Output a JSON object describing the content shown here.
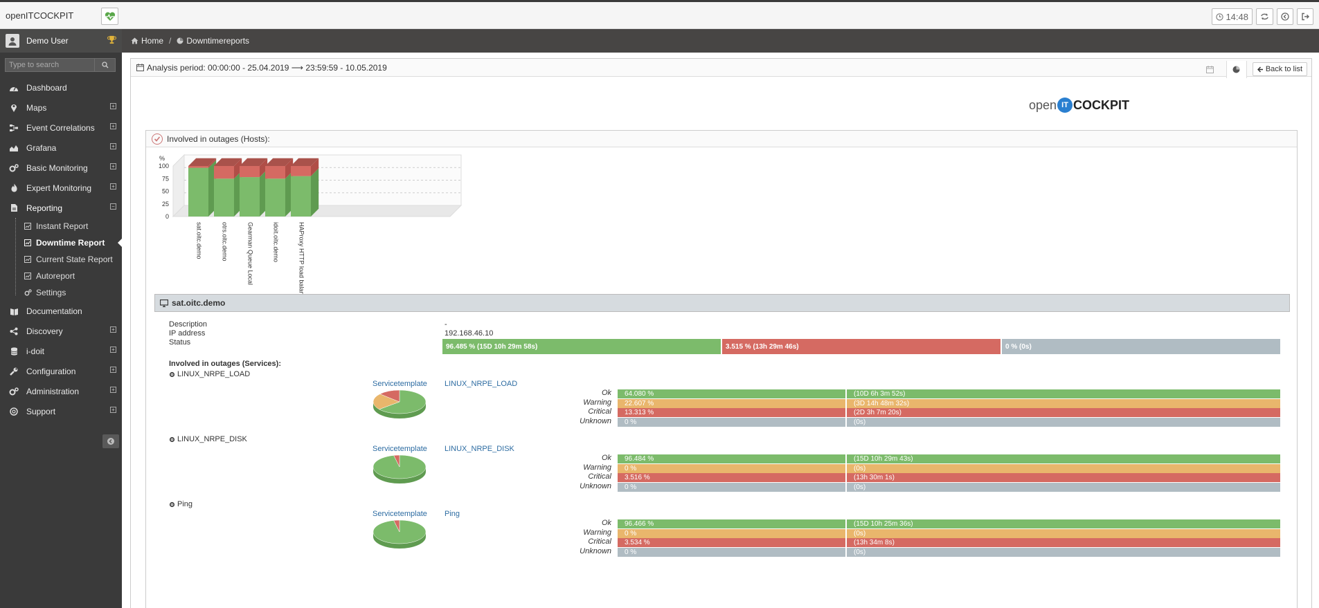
{
  "app": {
    "title": "openITCOCKPIT",
    "clock": "14:48"
  },
  "user": {
    "name": "Demo User"
  },
  "search": {
    "placeholder": "Type to search"
  },
  "menu": {
    "dashboard": "Dashboard",
    "maps": "Maps",
    "event_correlations": "Event Correlations",
    "grafana": "Grafana",
    "basic_monitoring": "Basic Monitoring",
    "expert_monitoring": "Expert Monitoring",
    "reporting": "Reporting",
    "documentation": "Documentation",
    "discovery": "Discovery",
    "idoit": "i-doit",
    "configuration": "Configuration",
    "administration": "Administration",
    "support": "Support",
    "reporting_sub": {
      "instant": "Instant Report",
      "downtime": "Downtime Report",
      "current_state": "Current State Report",
      "autoreport": "Autoreport",
      "settings": "Settings"
    }
  },
  "breadcrumb": {
    "home": "Home",
    "sep": "/",
    "current": "Downtimereports"
  },
  "panel": {
    "analysis_period": "Analysis period: 00:00:00 - 25.04.2019 ⟶ 23:59:59 - 10.05.2019",
    "back_label": "Back to list"
  },
  "brand": {
    "open": "open",
    "it": "IT",
    "cockpit": "COCKPIT"
  },
  "outage": {
    "title": "Involved in outages (Hosts):"
  },
  "chart_data": {
    "type": "bar",
    "title": "",
    "ylabel": "%",
    "ylim": [
      0,
      100
    ],
    "yticks": [
      0,
      25,
      50,
      75,
      100
    ],
    "categories": [
      "sat.oitc.demo",
      "otrs.oitc.demo",
      "Gearman Queue Local",
      "idoit.oitc.demo",
      "HAProxy HTTP load balance..."
    ],
    "stacked": true,
    "series": [
      {
        "values": [
          96.485,
          75,
          78,
          75,
          80
        ],
        "color": "#7cbb6b"
      },
      {
        "values": [
          3.515,
          25,
          22,
          25,
          20
        ],
        "color": "#d56a62"
      }
    ],
    "colors": [
      "#7cbb6b",
      "#d56a62"
    ]
  },
  "host": {
    "name": "sat.oitc.demo",
    "labels": {
      "description": "Description",
      "ip": "IP address",
      "status": "Status"
    },
    "description": "-",
    "ip": "192.168.46.10",
    "status": {
      "up": "96.485 % (15D 10h 29m 58s)",
      "down": "3.515 % (13h 29m 46s)",
      "unreachable": "0 % (0s)"
    },
    "services_title": "Involved in outages (Services):",
    "service_template_label": "Servicetemplate",
    "state_labels": {
      "ok": "Ok",
      "warning": "Warning",
      "critical": "Critical",
      "unknown": "Unknown"
    },
    "services": [
      {
        "name": "LINUX_NRPE_LOAD",
        "template": "LINUX_NRPE_LOAD",
        "pie": {
          "ok": 64.08,
          "warning": 22.607,
          "critical": 13.313,
          "unknown": 0
        },
        "rows": {
          "ok": {
            "pct": "64.080 %",
            "time": "(10D 6h 3m 52s)"
          },
          "warning": {
            "pct": "22.607 %",
            "time": "(3D 14h 48m 32s)"
          },
          "critical": {
            "pct": "13.313 %",
            "time": "(2D 3h 7m 20s)"
          },
          "unknown": {
            "pct": "0 %",
            "time": "(0s)"
          }
        }
      },
      {
        "name": "LINUX_NRPE_DISK",
        "template": "LINUX_NRPE_DISK",
        "pie": {
          "ok": 96.484,
          "warning": 0,
          "critical": 3.516,
          "unknown": 0
        },
        "rows": {
          "ok": {
            "pct": "96.484 %",
            "time": "(15D 10h 29m 43s)"
          },
          "warning": {
            "pct": "0 %",
            "time": "(0s)"
          },
          "critical": {
            "pct": "3.516 %",
            "time": "(13h 30m 1s)"
          },
          "unknown": {
            "pct": "0 %",
            "time": "(0s)"
          }
        }
      },
      {
        "name": "Ping",
        "template": "Ping",
        "pie": {
          "ok": 96.466,
          "warning": 0,
          "critical": 3.534,
          "unknown": 0
        },
        "rows": {
          "ok": {
            "pct": "96.466 %",
            "time": "(15D 10h 25m 36s)"
          },
          "warning": {
            "pct": "0 %",
            "time": "(0s)"
          },
          "critical": {
            "pct": "3.534 %",
            "time": "(13h 34m 8s)"
          },
          "unknown": {
            "pct": "0 %",
            "time": "(0s)"
          }
        }
      }
    ]
  }
}
